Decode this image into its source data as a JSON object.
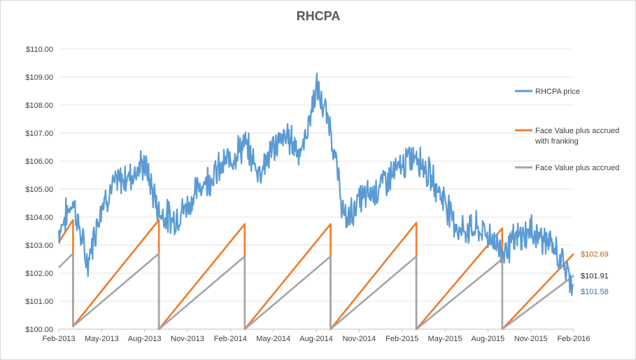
{
  "chart_data": {
    "type": "line",
    "title": "RHCPA",
    "xlabel": "",
    "ylabel": "",
    "ylim": [
      100,
      110
    ],
    "y_ticks": [
      "$100.00",
      "$101.00",
      "$102.00",
      "$103.00",
      "$104.00",
      "$105.00",
      "$106.00",
      "$107.00",
      "$108.00",
      "$109.00",
      "$110.00"
    ],
    "x_ticks": [
      "Feb-2013",
      "May-2013",
      "Aug-2013",
      "Nov-2013",
      "Feb-2014",
      "May-2014",
      "Aug-2014",
      "Nov-2014",
      "Feb-2015",
      "May-2015",
      "Aug-2015",
      "Nov-2015",
      "Feb-2016"
    ],
    "x_range": [
      "Feb-2013",
      "Feb-2016"
    ],
    "grid": true,
    "legend_position": "right",
    "series": [
      {
        "name": "RHCPA price",
        "color": "#5b9bd5",
        "points": [
          [
            "Feb-2013",
            103.5
          ],
          [
            "Mar-2013",
            104.6
          ],
          [
            "Apr-2013",
            102.3
          ],
          [
            "May-2013",
            104.5
          ],
          [
            "Jun-2013",
            105.2
          ],
          [
            "Jul-2013",
            105.5
          ],
          [
            "Aug-2013",
            105.9
          ],
          [
            "Sep-2013",
            104.2
          ],
          [
            "Oct-2013",
            103.9
          ],
          [
            "Nov-2013",
            104.4
          ],
          [
            "Dec-2013",
            105.2
          ],
          [
            "Jan-2014",
            105.6
          ],
          [
            "Feb-2014",
            106.1
          ],
          [
            "Mar-2014",
            106.6
          ],
          [
            "Apr-2014",
            105.6
          ],
          [
            "May-2014",
            106.5
          ],
          [
            "Jun-2014",
            106.9
          ],
          [
            "Jul-2014",
            106.3
          ],
          [
            "Aug-2014",
            108.6
          ],
          [
            "Sep-2014",
            107.2
          ],
          [
            "Oct-2014",
            103.8
          ],
          [
            "Nov-2014",
            104.6
          ],
          [
            "Dec-2014",
            104.9
          ],
          [
            "Jan-2015",
            105.4
          ],
          [
            "Feb-2015",
            105.8
          ],
          [
            "Mar-2015",
            106.3
          ],
          [
            "Apr-2015",
            105.4
          ],
          [
            "May-2015",
            104.6
          ],
          [
            "Jun-2015",
            103.5
          ],
          [
            "Jul-2015",
            103.6
          ],
          [
            "Aug-2015",
            103.4
          ],
          [
            "Sep-2015",
            102.8
          ],
          [
            "Oct-2015",
            103.2
          ],
          [
            "Nov-2015",
            103.5
          ],
          [
            "Dec-2015",
            103.2
          ],
          [
            "Jan-2016",
            102.6
          ],
          [
            "Feb-2016",
            101.58
          ]
        ]
      },
      {
        "name": "Face Value plus accrued with franking",
        "color": "#ed7d31",
        "points": [
          [
            "Feb-2013",
            103.1
          ],
          [
            "Mar-2013",
            103.9
          ],
          [
            "Mar-2013",
            100.1
          ],
          [
            "Sep-2013",
            103.9
          ],
          [
            "Sep-2013",
            100.0
          ],
          [
            "Mar-2014",
            103.75
          ],
          [
            "Mar-2014",
            100.0
          ],
          [
            "Sep-2014",
            103.75
          ],
          [
            "Sep-2014",
            100.0
          ],
          [
            "Mar-2015",
            103.8
          ],
          [
            "Mar-2015",
            100.0
          ],
          [
            "Sep-2015",
            103.6
          ],
          [
            "Sep-2015",
            100.0
          ],
          [
            "Feb-2016",
            102.69
          ]
        ]
      },
      {
        "name": "Face Value plus accrued",
        "color": "#a5a5a5",
        "points": [
          [
            "Feb-2013",
            102.2
          ],
          [
            "Mar-2013",
            102.7
          ],
          [
            "Mar-2013",
            100.1
          ],
          [
            "Sep-2013",
            102.7
          ],
          [
            "Sep-2013",
            100.0
          ],
          [
            "Mar-2014",
            102.6
          ],
          [
            "Mar-2014",
            100.0
          ],
          [
            "Sep-2014",
            102.6
          ],
          [
            "Sep-2014",
            100.0
          ],
          [
            "Mar-2015",
            102.6
          ],
          [
            "Mar-2015",
            100.0
          ],
          [
            "Sep-2015",
            102.5
          ],
          [
            "Sep-2015",
            100.0
          ],
          [
            "Feb-2016",
            101.91
          ]
        ]
      }
    ],
    "end_labels": [
      {
        "text": "$102.69",
        "value": 102.69,
        "color": "#c55a11"
      },
      {
        "text": "$101.91",
        "value": 101.91,
        "color": "#262626"
      },
      {
        "text": "$101.58",
        "value": 101.58,
        "color": "#2e75b6"
      }
    ]
  }
}
